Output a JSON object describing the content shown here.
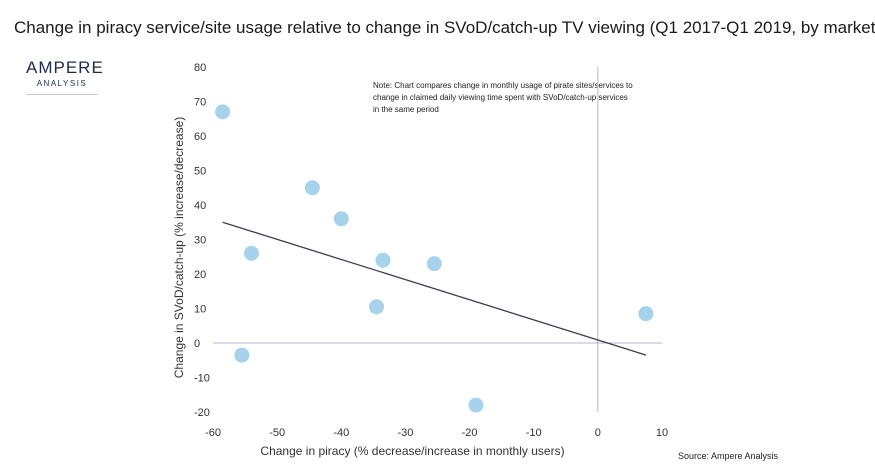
{
  "title": "Change in piracy service/site usage relative to change in SVoD/catch-up TV viewing (Q1 2017-Q1 2019, by market",
  "logo": {
    "main": "AMPERE",
    "sub": "ANALYSIS"
  },
  "note": "Note: Chart compares change in monthly usage of pirate sites/services to change in claimed daily viewing time spent with SVoD/catch-up services in the same period",
  "source": "Source: Ampere Analysis",
  "colors": {
    "point": "#a6d2ec",
    "trend": "#3c3c55",
    "axis_zero": "#b9b4cc"
  },
  "chart_data": {
    "type": "scatter",
    "title": "Change in piracy service/site usage relative to change in SVoD/catch-up TV viewing (Q1 2017-Q1 2019, by market",
    "xlabel": "Change in piracy (% decrease/increase in monthly users)",
    "ylabel": "Change in SVoD/catch-up (% increase/decrease)",
    "xlim": [
      -60,
      10
    ],
    "ylim": [
      -20,
      80
    ],
    "xticks": [
      -60,
      -50,
      -40,
      -30,
      -20,
      -10,
      0,
      10
    ],
    "yticks": [
      -20,
      -10,
      0,
      10,
      20,
      30,
      40,
      50,
      60,
      70,
      80
    ],
    "points": [
      {
        "x": -58.5,
        "y": 67
      },
      {
        "x": -54,
        "y": 26
      },
      {
        "x": -55.5,
        "y": -3.5
      },
      {
        "x": -44.5,
        "y": 45
      },
      {
        "x": -40,
        "y": 36
      },
      {
        "x": -33.5,
        "y": 24
      },
      {
        "x": -34.5,
        "y": 10.5
      },
      {
        "x": -25.5,
        "y": 23
      },
      {
        "x": -19,
        "y": -18
      },
      {
        "x": 7.5,
        "y": 8.5
      }
    ],
    "trendline": {
      "x": [
        -58.5,
        7.5
      ],
      "y": [
        35,
        -3.5
      ]
    },
    "grid": false,
    "legend": "none"
  }
}
